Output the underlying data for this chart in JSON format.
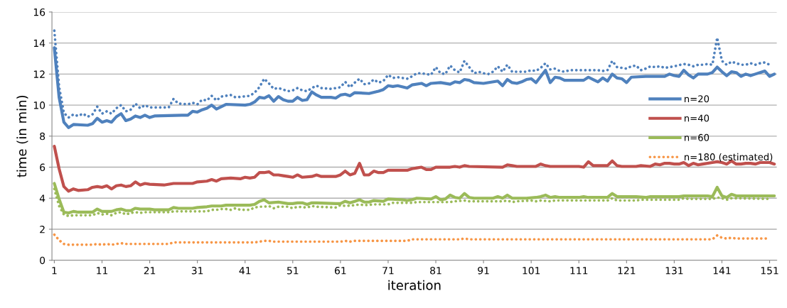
{
  "chart_data": {
    "type": "line",
    "xlabel": "iteration",
    "ylabel": "time (in min)",
    "xlim": [
      0.5,
      152.5
    ],
    "xticks": [
      1,
      11,
      21,
      31,
      41,
      51,
      61,
      71,
      81,
      91,
      101,
      111,
      121,
      131,
      141,
      151
    ],
    "ylim": [
      0,
      16
    ],
    "yticks": [
      0,
      2,
      4,
      6,
      8,
      10,
      12,
      14,
      16
    ],
    "grid": "y",
    "legend": "right",
    "series": [
      {
        "name": "n=20",
        "color": "#4f81bd",
        "line_style": "solid",
        "x": [
          1,
          2,
          3,
          4,
          5,
          8,
          9,
          10,
          11,
          12,
          13,
          14,
          15,
          16,
          17,
          18,
          19,
          20,
          21,
          22,
          28,
          29,
          30,
          31,
          32,
          33,
          34,
          35,
          36,
          37,
          41,
          42,
          43,
          44,
          45,
          46,
          47,
          48,
          49,
          50,
          51,
          52,
          53,
          54,
          55,
          56,
          57,
          59,
          60,
          61,
          62,
          63,
          64,
          67,
          69,
          70,
          71,
          72,
          73,
          75,
          76,
          78,
          79,
          80,
          82,
          84,
          85,
          86,
          87,
          88,
          89,
          91,
          94,
          95,
          96,
          97,
          98,
          99,
          100,
          101,
          102,
          103,
          104,
          105,
          106,
          107,
          108,
          112,
          113,
          114,
          115,
          116,
          117,
          118,
          119,
          120,
          121,
          122,
          125,
          127,
          129,
          130,
          131,
          132,
          133,
          134,
          135,
          136,
          138,
          139,
          140,
          141,
          142,
          143,
          144,
          145,
          146,
          147,
          148,
          149,
          150,
          151,
          152
        ],
        "values": [
          13.7,
          10.5,
          8.9,
          8.55,
          8.75,
          8.7,
          8.8,
          9.15,
          8.9,
          9.0,
          8.9,
          9.25,
          9.45,
          9.0,
          9.1,
          9.3,
          9.2,
          9.35,
          9.2,
          9.3,
          9.35,
          9.35,
          9.6,
          9.55,
          9.7,
          9.8,
          10.0,
          9.75,
          9.9,
          10.05,
          10.0,
          10.05,
          10.2,
          10.5,
          10.45,
          10.6,
          10.25,
          10.55,
          10.35,
          10.25,
          10.25,
          10.5,
          10.3,
          10.35,
          10.85,
          10.65,
          10.5,
          10.5,
          10.45,
          10.65,
          10.7,
          10.6,
          10.8,
          10.75,
          10.9,
          11.0,
          11.25,
          11.2,
          11.25,
          11.1,
          11.3,
          11.4,
          11.25,
          11.4,
          11.45,
          11.35,
          11.5,
          11.45,
          11.65,
          11.6,
          11.45,
          11.4,
          11.55,
          11.25,
          11.65,
          11.45,
          11.4,
          11.5,
          11.65,
          11.7,
          11.45,
          11.85,
          12.25,
          11.45,
          11.8,
          11.75,
          11.6,
          11.6,
          11.8,
          11.65,
          11.5,
          11.75,
          11.55,
          12.0,
          11.75,
          11.7,
          11.45,
          11.8,
          11.85,
          11.85,
          11.85,
          12.0,
          11.9,
          11.85,
          12.25,
          11.95,
          11.75,
          12.0,
          12.0,
          12.1,
          12.45,
          12.15,
          11.9,
          12.15,
          12.1,
          11.85,
          12.0,
          11.9,
          12.0,
          12.1,
          12.2,
          11.85,
          12.0
        ]
      },
      {
        "color": "#4f81bd",
        "line_style": "dotted",
        "x": [
          1,
          2,
          3,
          4,
          5,
          6,
          7,
          8,
          9,
          10,
          11,
          12,
          13,
          14,
          15,
          16,
          17,
          18,
          19,
          20,
          21,
          25,
          26,
          27,
          29,
          30,
          31,
          32,
          33,
          34,
          35,
          36,
          37,
          38,
          39,
          42,
          43,
          44,
          45,
          46,
          47,
          48,
          49,
          50,
          51,
          52,
          53,
          54,
          55,
          56,
          57,
          59,
          60,
          61,
          62,
          63,
          64,
          65,
          66,
          67,
          68,
          69,
          70,
          71,
          72,
          73,
          74,
          75,
          76,
          77,
          78,
          80,
          81,
          82,
          83,
          84,
          85,
          86,
          87,
          88,
          89,
          90,
          91,
          92,
          93,
          94,
          95,
          96,
          97,
          100,
          101,
          102,
          103,
          104,
          105,
          106,
          107,
          108,
          109,
          115,
          116,
          117,
          118,
          119,
          120,
          121,
          122,
          123,
          124,
          125,
          126,
          127,
          128,
          129,
          131,
          133,
          134,
          135,
          136,
          137,
          138,
          139,
          140,
          141,
          142,
          143,
          144,
          145,
          146,
          147,
          148,
          149,
          150,
          151
        ],
        "values": [
          14.8,
          11.2,
          9.5,
          9.2,
          9.4,
          9.3,
          9.45,
          9.25,
          9.4,
          9.9,
          9.45,
          9.6,
          9.45,
          9.8,
          10.0,
          9.6,
          9.7,
          10.1,
          9.8,
          10.0,
          9.85,
          9.85,
          10.4,
          10.1,
          10.05,
          10.15,
          10.05,
          10.35,
          10.3,
          10.6,
          10.3,
          10.55,
          10.6,
          10.65,
          10.5,
          10.6,
          10.8,
          11.15,
          11.7,
          11.4,
          11.05,
          11.1,
          11.0,
          10.9,
          10.95,
          11.1,
          10.95,
          10.9,
          11.1,
          11.25,
          11.1,
          11.05,
          11.1,
          11.15,
          11.5,
          11.15,
          11.45,
          11.7,
          11.35,
          11.4,
          11.65,
          11.45,
          11.55,
          11.95,
          11.75,
          11.8,
          11.75,
          11.7,
          11.85,
          12.05,
          12.05,
          11.95,
          12.45,
          12.05,
          12.0,
          12.55,
          12.25,
          12.1,
          12.85,
          12.45,
          12.05,
          12.15,
          12.05,
          12.0,
          12.15,
          12.5,
          12.15,
          12.6,
          12.15,
          12.15,
          12.25,
          12.2,
          12.4,
          12.7,
          12.3,
          12.35,
          12.2,
          12.15,
          12.25,
          12.25,
          12.2,
          12.25,
          12.85,
          12.45,
          12.4,
          12.35,
          12.5,
          12.55,
          12.25,
          12.35,
          12.5,
          12.45,
          12.5,
          12.4,
          12.5,
          12.65,
          12.6,
          12.5,
          12.6,
          12.6,
          12.65,
          12.6,
          14.35,
          12.85,
          12.6,
          12.8,
          12.7,
          12.6,
          12.6,
          12.7,
          12.6,
          12.7,
          12.75,
          12.6
        ]
      },
      {
        "name": "n=40",
        "color": "#c0504d",
        "line_style": "solid",
        "x": [
          1,
          2,
          3,
          4,
          5,
          6,
          8,
          9,
          10,
          11,
          12,
          13,
          14,
          15,
          16,
          17,
          18,
          19,
          20,
          21,
          24,
          26,
          30,
          31,
          33,
          34,
          35,
          36,
          38,
          40,
          41,
          42,
          43,
          44,
          45,
          46,
          47,
          48,
          49,
          50,
          51,
          52,
          53,
          55,
          56,
          57,
          60,
          61,
          62,
          63,
          64,
          65,
          66,
          67,
          68,
          69,
          70,
          71,
          75,
          76,
          77,
          78,
          79,
          80,
          81,
          84,
          85,
          86,
          87,
          88,
          95,
          96,
          97,
          98,
          102,
          103,
          104,
          105,
          111,
          112,
          113,
          114,
          117,
          118,
          119,
          120,
          123,
          124,
          126,
          127,
          128,
          129,
          130,
          131,
          132,
          133,
          134,
          135,
          136,
          137,
          139,
          140,
          141,
          142,
          143,
          144,
          145,
          146,
          147,
          148,
          149,
          150,
          151,
          152
        ],
        "values": [
          7.35,
          5.9,
          4.75,
          4.45,
          4.6,
          4.5,
          4.55,
          4.7,
          4.75,
          4.7,
          4.8,
          4.6,
          4.8,
          4.85,
          4.75,
          4.8,
          5.05,
          4.85,
          4.95,
          4.9,
          4.85,
          4.95,
          4.95,
          5.05,
          5.1,
          5.2,
          5.1,
          5.25,
          5.3,
          5.25,
          5.35,
          5.3,
          5.35,
          5.65,
          5.65,
          5.7,
          5.5,
          5.5,
          5.45,
          5.4,
          5.35,
          5.5,
          5.35,
          5.4,
          5.5,
          5.4,
          5.4,
          5.5,
          5.75,
          5.5,
          5.6,
          6.25,
          5.5,
          5.5,
          5.75,
          5.65,
          5.65,
          5.8,
          5.8,
          5.9,
          5.95,
          6.0,
          5.85,
          5.85,
          6.0,
          6.0,
          6.05,
          6.0,
          6.1,
          6.05,
          6.0,
          6.15,
          6.1,
          6.05,
          6.05,
          6.2,
          6.1,
          6.05,
          6.05,
          6.0,
          6.35,
          6.1,
          6.1,
          6.4,
          6.1,
          6.05,
          6.05,
          6.1,
          6.05,
          6.2,
          6.15,
          6.25,
          6.25,
          6.2,
          6.2,
          6.3,
          6.1,
          6.25,
          6.15,
          6.2,
          6.3,
          6.35,
          6.3,
          6.2,
          6.4,
          6.2,
          6.2,
          6.25,
          6.25,
          6.2,
          6.3,
          6.3,
          6.3,
          6.2
        ]
      },
      {
        "name": "n=60",
        "color": "#9bbb59",
        "line_style": "solid",
        "x": [
          1,
          2,
          3,
          4,
          5,
          6,
          9,
          10,
          11,
          13,
          14,
          15,
          16,
          17,
          18,
          19,
          21,
          22,
          25,
          26,
          27,
          30,
          31,
          33,
          34,
          36,
          37,
          42,
          43,
          44,
          45,
          46,
          48,
          49,
          50,
          51,
          52,
          53,
          54,
          55,
          56,
          60,
          61,
          62,
          63,
          64,
          65,
          66,
          67,
          68,
          70,
          71,
          74,
          75,
          76,
          77,
          80,
          81,
          82,
          83,
          84,
          85,
          86,
          87,
          88,
          89,
          93,
          94,
          95,
          96,
          97,
          100,
          102,
          103,
          104,
          105,
          106,
          107,
          111,
          112,
          113,
          117,
          118,
          119,
          123,
          125,
          126,
          132,
          133,
          138,
          139,
          140,
          141,
          142,
          143,
          144,
          152
        ],
        "values": [
          4.95,
          3.95,
          3.1,
          3.05,
          3.15,
          3.1,
          3.1,
          3.3,
          3.15,
          3.15,
          3.25,
          3.3,
          3.2,
          3.2,
          3.35,
          3.3,
          3.3,
          3.25,
          3.25,
          3.4,
          3.35,
          3.35,
          3.4,
          3.45,
          3.5,
          3.5,
          3.55,
          3.55,
          3.6,
          3.8,
          3.9,
          3.7,
          3.75,
          3.7,
          3.65,
          3.65,
          3.7,
          3.7,
          3.6,
          3.7,
          3.7,
          3.65,
          3.65,
          3.8,
          3.7,
          3.8,
          3.9,
          3.75,
          3.75,
          3.85,
          3.8,
          3.95,
          3.9,
          3.85,
          3.9,
          4.0,
          3.95,
          4.1,
          3.9,
          3.95,
          4.2,
          4.05,
          4.0,
          4.3,
          4.05,
          4.0,
          4.0,
          4.1,
          4.0,
          4.2,
          4.0,
          4.0,
          4.05,
          4.1,
          4.2,
          4.05,
          4.1,
          4.05,
          4.05,
          4.1,
          4.05,
          4.05,
          4.3,
          4.1,
          4.1,
          4.05,
          4.1,
          4.1,
          4.15,
          4.15,
          4.1,
          4.7,
          4.15,
          4.05,
          4.25,
          4.15,
          4.15
        ]
      },
      {
        "color": "#9bbb59",
        "line_style": "dotted",
        "x": [
          1,
          2,
          3,
          4,
          5,
          9,
          10,
          11,
          12,
          13,
          14,
          15,
          16,
          17,
          18,
          19,
          20,
          25,
          26,
          33,
          34,
          35,
          36,
          37,
          38,
          39,
          40,
          42,
          43,
          44,
          45,
          46,
          47,
          48,
          50,
          51,
          52,
          54,
          55,
          56,
          60,
          61,
          62,
          64,
          65,
          66,
          68,
          71,
          72,
          76,
          77,
          84,
          85,
          87,
          88,
          95,
          96,
          97,
          98,
          101,
          102,
          103,
          105,
          106,
          117,
          118,
          119,
          123,
          124,
          132,
          133,
          134,
          139,
          140,
          141,
          142,
          143,
          151
        ],
        "values": [
          4.6,
          3.5,
          2.95,
          2.85,
          2.9,
          2.9,
          3.05,
          2.95,
          3.0,
          2.9,
          3.05,
          3.1,
          2.95,
          3.05,
          3.1,
          3.05,
          3.1,
          3.1,
          3.15,
          3.15,
          3.25,
          3.25,
          3.3,
          3.3,
          3.25,
          3.35,
          3.25,
          3.25,
          3.4,
          3.45,
          3.45,
          3.5,
          3.35,
          3.45,
          3.45,
          3.35,
          3.45,
          3.4,
          3.5,
          3.45,
          3.4,
          3.55,
          3.5,
          3.55,
          3.6,
          3.55,
          3.6,
          3.6,
          3.7,
          3.7,
          3.75,
          3.75,
          3.8,
          3.85,
          3.8,
          3.8,
          3.85,
          3.75,
          3.8,
          3.85,
          3.8,
          3.85,
          3.8,
          3.85,
          3.85,
          4.0,
          3.85,
          3.85,
          3.9,
          3.9,
          4.0,
          3.95,
          3.95,
          4.05,
          4.0,
          3.9,
          4.0,
          3.95
        ]
      },
      {
        "name": "n=180 (estimated)",
        "color": "#f79646",
        "line_style": "dotted",
        "x": [
          1,
          2,
          3,
          4,
          9,
          10,
          11,
          12,
          13,
          14,
          15,
          16,
          25,
          26,
          43,
          44,
          45,
          46,
          47,
          61,
          62,
          63,
          64,
          75,
          76,
          86,
          87,
          88,
          139,
          140,
          141,
          142,
          143,
          144,
          151
        ],
        "values": [
          1.65,
          1.3,
          1.05,
          1.0,
          1.0,
          1.05,
          1.0,
          1.05,
          1.0,
          1.05,
          1.1,
          1.05,
          1.05,
          1.15,
          1.15,
          1.2,
          1.25,
          1.25,
          1.2,
          1.2,
          1.25,
          1.2,
          1.25,
          1.25,
          1.35,
          1.35,
          1.4,
          1.35,
          1.35,
          1.6,
          1.45,
          1.4,
          1.45,
          1.4,
          1.4
        ]
      }
    ]
  }
}
